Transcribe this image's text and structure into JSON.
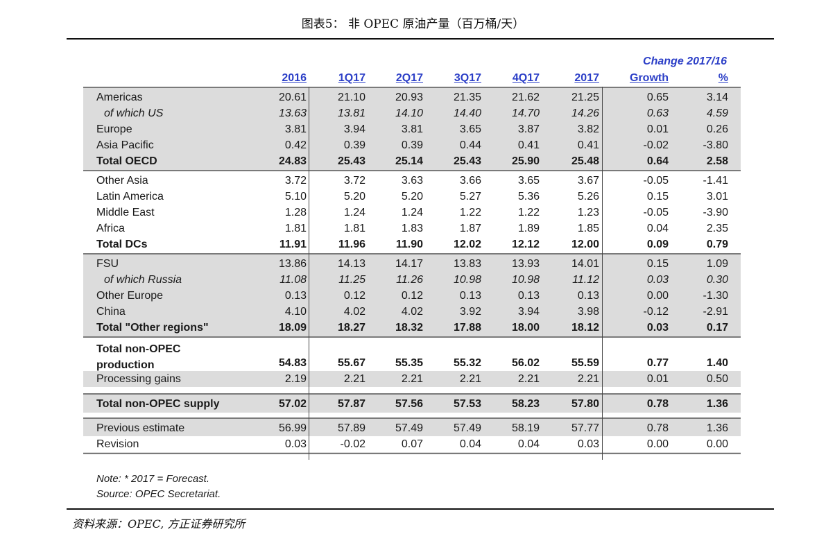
{
  "caption": "图表5：  非 OPEC 原油产量（百万桶/天）",
  "header": {
    "change_title": "Change 2017/16",
    "columns": [
      "2016",
      "1Q17",
      "2Q17",
      "3Q17",
      "4Q17",
      "2017",
      "Growth",
      "%"
    ]
  },
  "sections": [
    {
      "rows": [
        {
          "label": "Americas",
          "values": [
            "20.61",
            "21.10",
            "20.93",
            "21.35",
            "21.62",
            "21.25",
            "0.65",
            "3.14"
          ]
        },
        {
          "label": "of which US",
          "values": [
            "13.63",
            "13.81",
            "14.10",
            "14.40",
            "14.70",
            "14.26",
            "0.63",
            "4.59"
          ]
        },
        {
          "label": "Europe",
          "values": [
            "3.81",
            "3.94",
            "3.81",
            "3.65",
            "3.87",
            "3.82",
            "0.01",
            "0.26"
          ]
        },
        {
          "label": "Asia Pacific",
          "values": [
            "0.42",
            "0.39",
            "0.39",
            "0.44",
            "0.41",
            "0.41",
            "-0.02",
            "-3.80"
          ]
        },
        {
          "label": "Total OECD",
          "values": [
            "24.83",
            "25.43",
            "25.14",
            "25.43",
            "25.90",
            "25.48",
            "0.64",
            "2.58"
          ]
        }
      ]
    },
    {
      "rows": [
        {
          "label": "Other Asia",
          "values": [
            "3.72",
            "3.72",
            "3.63",
            "3.66",
            "3.65",
            "3.67",
            "-0.05",
            "-1.41"
          ]
        },
        {
          "label": "Latin America",
          "values": [
            "5.10",
            "5.20",
            "5.20",
            "5.27",
            "5.36",
            "5.26",
            "0.15",
            "3.01"
          ]
        },
        {
          "label": "Middle East",
          "values": [
            "1.28",
            "1.24",
            "1.24",
            "1.22",
            "1.22",
            "1.23",
            "-0.05",
            "-3.90"
          ]
        },
        {
          "label": "Africa",
          "values": [
            "1.81",
            "1.81",
            "1.83",
            "1.87",
            "1.89",
            "1.85",
            "0.04",
            "2.35"
          ]
        },
        {
          "label": "Total DCs",
          "values": [
            "11.91",
            "11.96",
            "11.90",
            "12.02",
            "12.12",
            "12.00",
            "0.09",
            "0.79"
          ]
        }
      ]
    },
    {
      "rows": [
        {
          "label": "FSU",
          "values": [
            "13.86",
            "14.13",
            "14.17",
            "13.83",
            "13.93",
            "14.01",
            "0.15",
            "1.09"
          ]
        },
        {
          "label": "of which Russia",
          "values": [
            "11.08",
            "11.25",
            "11.26",
            "10.98",
            "10.98",
            "11.12",
            "0.03",
            "0.30"
          ]
        },
        {
          "label": "Other Europe",
          "values": [
            "0.13",
            "0.12",
            "0.12",
            "0.13",
            "0.13",
            "0.13",
            "0.00",
            "-1.30"
          ]
        },
        {
          "label": "China",
          "values": [
            "4.10",
            "4.02",
            "4.02",
            "3.92",
            "3.94",
            "3.98",
            "-0.12",
            "-2.91"
          ]
        },
        {
          "label": "Total \"Other regions\"",
          "values": [
            "18.09",
            "18.27",
            "18.32",
            "17.88",
            "18.00",
            "18.12",
            "0.03",
            "0.17"
          ]
        }
      ]
    },
    {
      "rows": [
        {
          "label_line1": "Total non-OPEC",
          "label_line2": "production",
          "values": [
            "54.83",
            "55.67",
            "55.35",
            "55.32",
            "56.02",
            "55.59",
            "0.77",
            "1.40"
          ]
        },
        {
          "label": "Processing gains",
          "values": [
            "2.19",
            "2.21",
            "2.21",
            "2.21",
            "2.21",
            "2.21",
            "0.01",
            "0.50"
          ]
        }
      ]
    },
    {
      "rows": [
        {
          "label": "Total non-OPEC supply",
          "values": [
            "57.02",
            "57.87",
            "57.56",
            "57.53",
            "58.23",
            "57.80",
            "0.78",
            "1.36"
          ]
        }
      ]
    },
    {
      "rows": [
        {
          "label": "Previous estimate",
          "values": [
            "56.99",
            "57.89",
            "57.49",
            "57.49",
            "58.19",
            "57.77",
            "0.78",
            "1.36"
          ]
        },
        {
          "label": "Revision",
          "values": [
            "0.03",
            "-0.02",
            "0.07",
            "0.04",
            "0.04",
            "0.03",
            "0.00",
            "0.00"
          ]
        }
      ]
    }
  ],
  "notes": {
    "line1": "Note: * 2017 = Forecast.",
    "line2": "Source: OPEC Secretariat."
  },
  "source": "资料来源：OPEC, 方正证券研究所"
}
